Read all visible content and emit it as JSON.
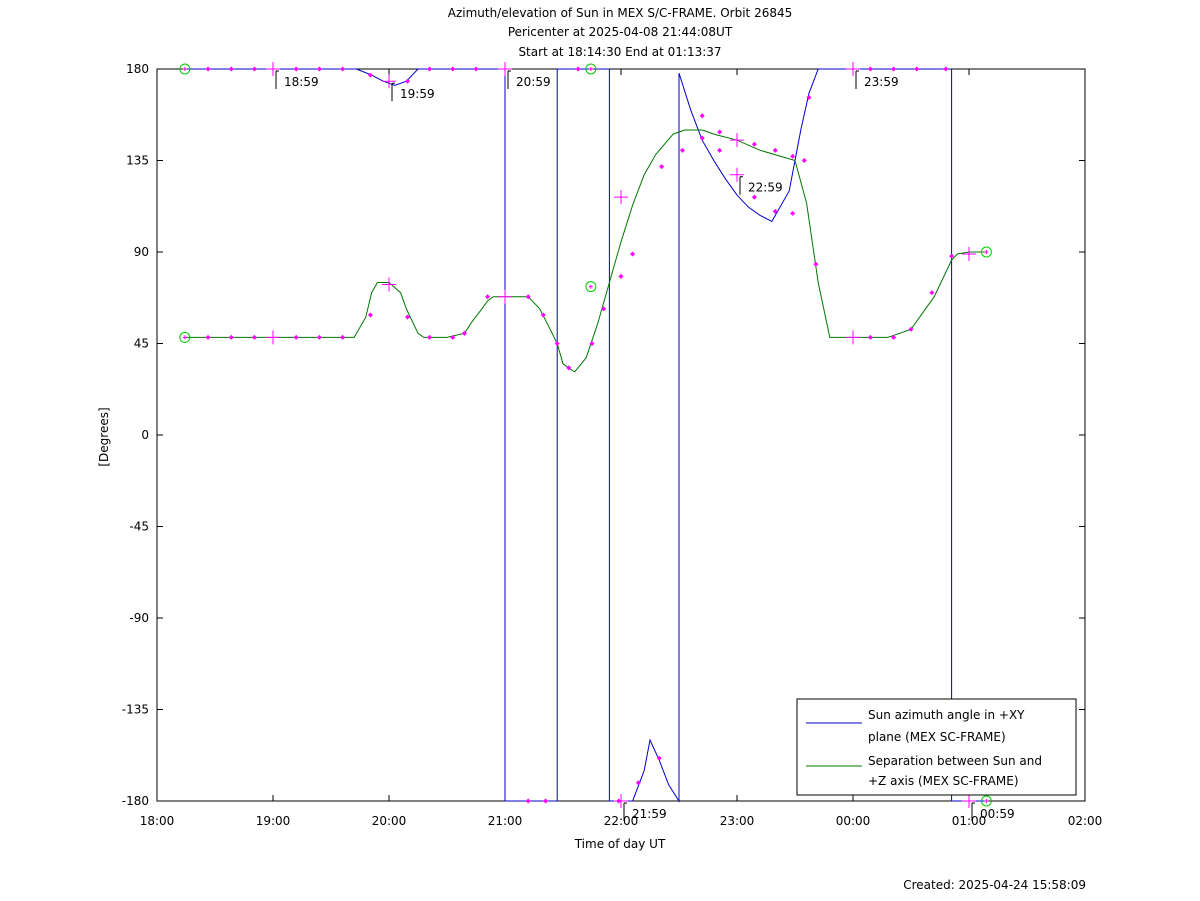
{
  "chart_data": {
    "type": "line",
    "title_lines": [
      "Azimuth/elevation of Sun in MEX S/C-FRAME.  Orbit 26845",
      "Pericenter at 2025-04-08 21:44:08UT",
      "Start at 18:14:30 End at 01:13:37"
    ],
    "xlabel": "Time of day UT",
    "ylabel": "[Degrees]",
    "footer": "Created: 2025-04-24 15:58:09",
    "xlim": [
      18.0,
      26.0
    ],
    "ylim": [
      -180,
      180
    ],
    "x_ticks": [
      {
        "v": 18,
        "label": "18:00"
      },
      {
        "v": 19,
        "label": "19:00"
      },
      {
        "v": 20,
        "label": "20:00"
      },
      {
        "v": 21,
        "label": "21:00"
      },
      {
        "v": 22,
        "label": "22:00"
      },
      {
        "v": 23,
        "label": "23:00"
      },
      {
        "v": 24,
        "label": "00:00"
      },
      {
        "v": 25,
        "label": "01:00"
      },
      {
        "v": 26,
        "label": "02:00"
      }
    ],
    "y_ticks": [
      {
        "v": 180,
        "label": "180"
      },
      {
        "v": 135,
        "label": "135"
      },
      {
        "v": 90,
        "label": "90"
      },
      {
        "v": 45,
        "label": "45"
      },
      {
        "v": 0,
        "label": "0"
      },
      {
        "v": -45,
        "label": "-45"
      },
      {
        "v": -90,
        "label": "-90"
      },
      {
        "v": -135,
        "label": "-135"
      },
      {
        "v": -180,
        "label": "-180"
      }
    ],
    "series": [
      {
        "name": "Sun azimuth angle in +XY plane (MEX SC-FRAME)",
        "legend_lines": [
          "Sun azimuth angle in +XY",
          "plane (MEX SC-FRAME)"
        ],
        "color": "#0000cc",
        "x": [
          18.24,
          19.72,
          19.85,
          19.95,
          20.05,
          20.15,
          20.25,
          20.95,
          21.0,
          21.0,
          21.4,
          21.45,
          21.45,
          21.85,
          21.9,
          21.9,
          22.1,
          22.2,
          22.25,
          22.33,
          22.41,
          22.5,
          22.5,
          22.6,
          22.7,
          22.8,
          22.9,
          23.0,
          23.1,
          23.2,
          23.3,
          23.45,
          23.55,
          23.62,
          23.7,
          23.85,
          24.0,
          24.5,
          24.8,
          24.85,
          24.85,
          25.15
        ],
        "y": [
          180,
          180,
          177,
          174,
          172,
          174,
          180,
          180,
          180,
          -180,
          -180,
          -180,
          180,
          180,
          180,
          -180,
          -180,
          -165,
          -150,
          -160,
          -172,
          -180,
          178,
          160,
          145,
          135,
          126,
          118,
          112,
          108,
          105,
          120,
          150,
          168,
          180,
          180,
          180,
          180,
          180,
          180,
          -180,
          -180
        ]
      },
      {
        "name": "Separation between Sun and +Z axis (MEX SC-FRAME)",
        "legend_lines": [
          "Separation between Sun and",
          "+Z axis (MEX SC-FRAME)"
        ],
        "color": "#007700",
        "x": [
          18.24,
          19.0,
          19.7,
          19.8,
          19.85,
          19.9,
          20.0,
          20.1,
          20.15,
          20.25,
          20.3,
          20.5,
          20.65,
          20.72,
          20.8,
          20.85,
          20.9,
          20.95,
          21.2,
          21.3,
          21.38,
          21.45,
          21.5,
          21.6,
          21.7,
          21.8,
          21.9,
          22.0,
          22.1,
          22.2,
          22.3,
          22.45,
          22.55,
          22.7,
          22.8,
          23.0,
          23.2,
          23.5,
          23.6,
          23.7,
          23.8,
          24.0,
          24.3,
          24.5,
          24.7,
          24.85,
          24.9,
          25.0,
          25.15
        ],
        "y": [
          48,
          48,
          48,
          58,
          70,
          75,
          75,
          70,
          62,
          50,
          48,
          48,
          50,
          56,
          62,
          66,
          68,
          68,
          68,
          62,
          53,
          45,
          35,
          31,
          38,
          55,
          75,
          95,
          113,
          128,
          138,
          148,
          150,
          150,
          148,
          145,
          140,
          135,
          114,
          75,
          48,
          48,
          48,
          52,
          68,
          86,
          89,
          90,
          90
        ]
      }
    ],
    "marker_color": "#ff00ff",
    "start_end_color": "#00cc00",
    "sample_markers": [
      {
        "x": 18.44,
        "y": 180
      },
      {
        "x": 18.64,
        "y": 180
      },
      {
        "x": 18.84,
        "y": 180
      },
      {
        "x": 19.2,
        "y": 180
      },
      {
        "x": 19.4,
        "y": 180
      },
      {
        "x": 19.6,
        "y": 180
      },
      {
        "x": 19.84,
        "y": 177
      },
      {
        "x": 20.16,
        "y": 174
      },
      {
        "x": 20.35,
        "y": 180
      },
      {
        "x": 20.55,
        "y": 180
      },
      {
        "x": 20.75,
        "y": 180
      },
      {
        "x": 21.2,
        "y": -180
      },
      {
        "x": 21.35,
        "y": -180
      },
      {
        "x": 21.63,
        "y": 180
      },
      {
        "x": 21.98,
        "y": -180
      },
      {
        "x": 22.15,
        "y": -171
      },
      {
        "x": 22.33,
        "y": -159
      },
      {
        "x": 22.7,
        "y": 157
      },
      {
        "x": 22.85,
        "y": 140
      },
      {
        "x": 23.15,
        "y": 117
      },
      {
        "x": 23.33,
        "y": 110
      },
      {
        "x": 23.48,
        "y": 109
      },
      {
        "x": 23.62,
        "y": 166
      },
      {
        "x": 24.15,
        "y": 180
      },
      {
        "x": 24.35,
        "y": 180
      },
      {
        "x": 24.55,
        "y": 180
      },
      {
        "x": 24.8,
        "y": 180
      },
      {
        "x": 18.44,
        "y": 48
      },
      {
        "x": 18.64,
        "y": 48
      },
      {
        "x": 18.84,
        "y": 48
      },
      {
        "x": 19.2,
        "y": 48
      },
      {
        "x": 19.4,
        "y": 48
      },
      {
        "x": 19.6,
        "y": 48
      },
      {
        "x": 19.84,
        "y": 59
      },
      {
        "x": 20.16,
        "y": 58
      },
      {
        "x": 20.35,
        "y": 48
      },
      {
        "x": 20.55,
        "y": 48
      },
      {
        "x": 20.65,
        "y": 50
      },
      {
        "x": 20.85,
        "y": 68
      },
      {
        "x": 21.2,
        "y": 68
      },
      {
        "x": 21.33,
        "y": 59
      },
      {
        "x": 21.45,
        "y": 45
      },
      {
        "x": 21.55,
        "y": 33
      },
      {
        "x": 21.75,
        "y": 45
      },
      {
        "x": 21.85,
        "y": 62
      },
      {
        "x": 22.0,
        "y": 78
      },
      {
        "x": 22.1,
        "y": 89
      },
      {
        "x": 22.35,
        "y": 132
      },
      {
        "x": 22.53,
        "y": 140
      },
      {
        "x": 22.7,
        "y": 146
      },
      {
        "x": 22.85,
        "y": 149
      },
      {
        "x": 23.15,
        "y": 143
      },
      {
        "x": 23.33,
        "y": 140
      },
      {
        "x": 23.48,
        "y": 137
      },
      {
        "x": 23.58,
        "y": 135
      },
      {
        "x": 23.68,
        "y": 84
      },
      {
        "x": 24.15,
        "y": 48
      },
      {
        "x": 24.35,
        "y": 48
      },
      {
        "x": 24.5,
        "y": 52
      },
      {
        "x": 24.68,
        "y": 70
      },
      {
        "x": 24.85,
        "y": 88
      }
    ],
    "hour_markers": [
      {
        "x": 19.0,
        "y": 180
      },
      {
        "x": 20.0,
        "y": 174
      },
      {
        "x": 21.0,
        "y": 180
      },
      {
        "x": 22.0,
        "y": -180
      },
      {
        "x": 23.0,
        "y": 128
      },
      {
        "x": 24.0,
        "y": 180
      },
      {
        "x": 25.0,
        "y": -180
      },
      {
        "x": 19.0,
        "y": 48
      },
      {
        "x": 20.0,
        "y": 74
      },
      {
        "x": 21.0,
        "y": 68
      },
      {
        "x": 22.0,
        "y": 117
      },
      {
        "x": 23.0,
        "y": 145
      },
      {
        "x": 24.0,
        "y": 48
      },
      {
        "x": 25.0,
        "y": 89
      }
    ],
    "start_end_markers": [
      {
        "x": 18.24,
        "y": 180
      },
      {
        "x": 18.24,
        "y": 48
      },
      {
        "x": 25.15,
        "y": 90
      },
      {
        "x": 25.15,
        "y": -180
      },
      {
        "x": 21.74,
        "y": 180
      },
      {
        "x": 21.74,
        "y": 73
      }
    ],
    "hour_labels": [
      {
        "x": 19.0,
        "y": 180,
        "label": "18:59"
      },
      {
        "x": 20.0,
        "y": 174,
        "label": "19:59"
      },
      {
        "x": 21.0,
        "y": 180,
        "label": "20:59"
      },
      {
        "x": 22.0,
        "y": -180,
        "label": "21:59"
      },
      {
        "x": 23.0,
        "y": 128,
        "label": "22:59"
      },
      {
        "x": 24.0,
        "y": 180,
        "label": "23:59"
      },
      {
        "x": 25.0,
        "y": -180,
        "label": "00:59"
      }
    ],
    "grid": false,
    "legend_position": "bottom-right"
  }
}
